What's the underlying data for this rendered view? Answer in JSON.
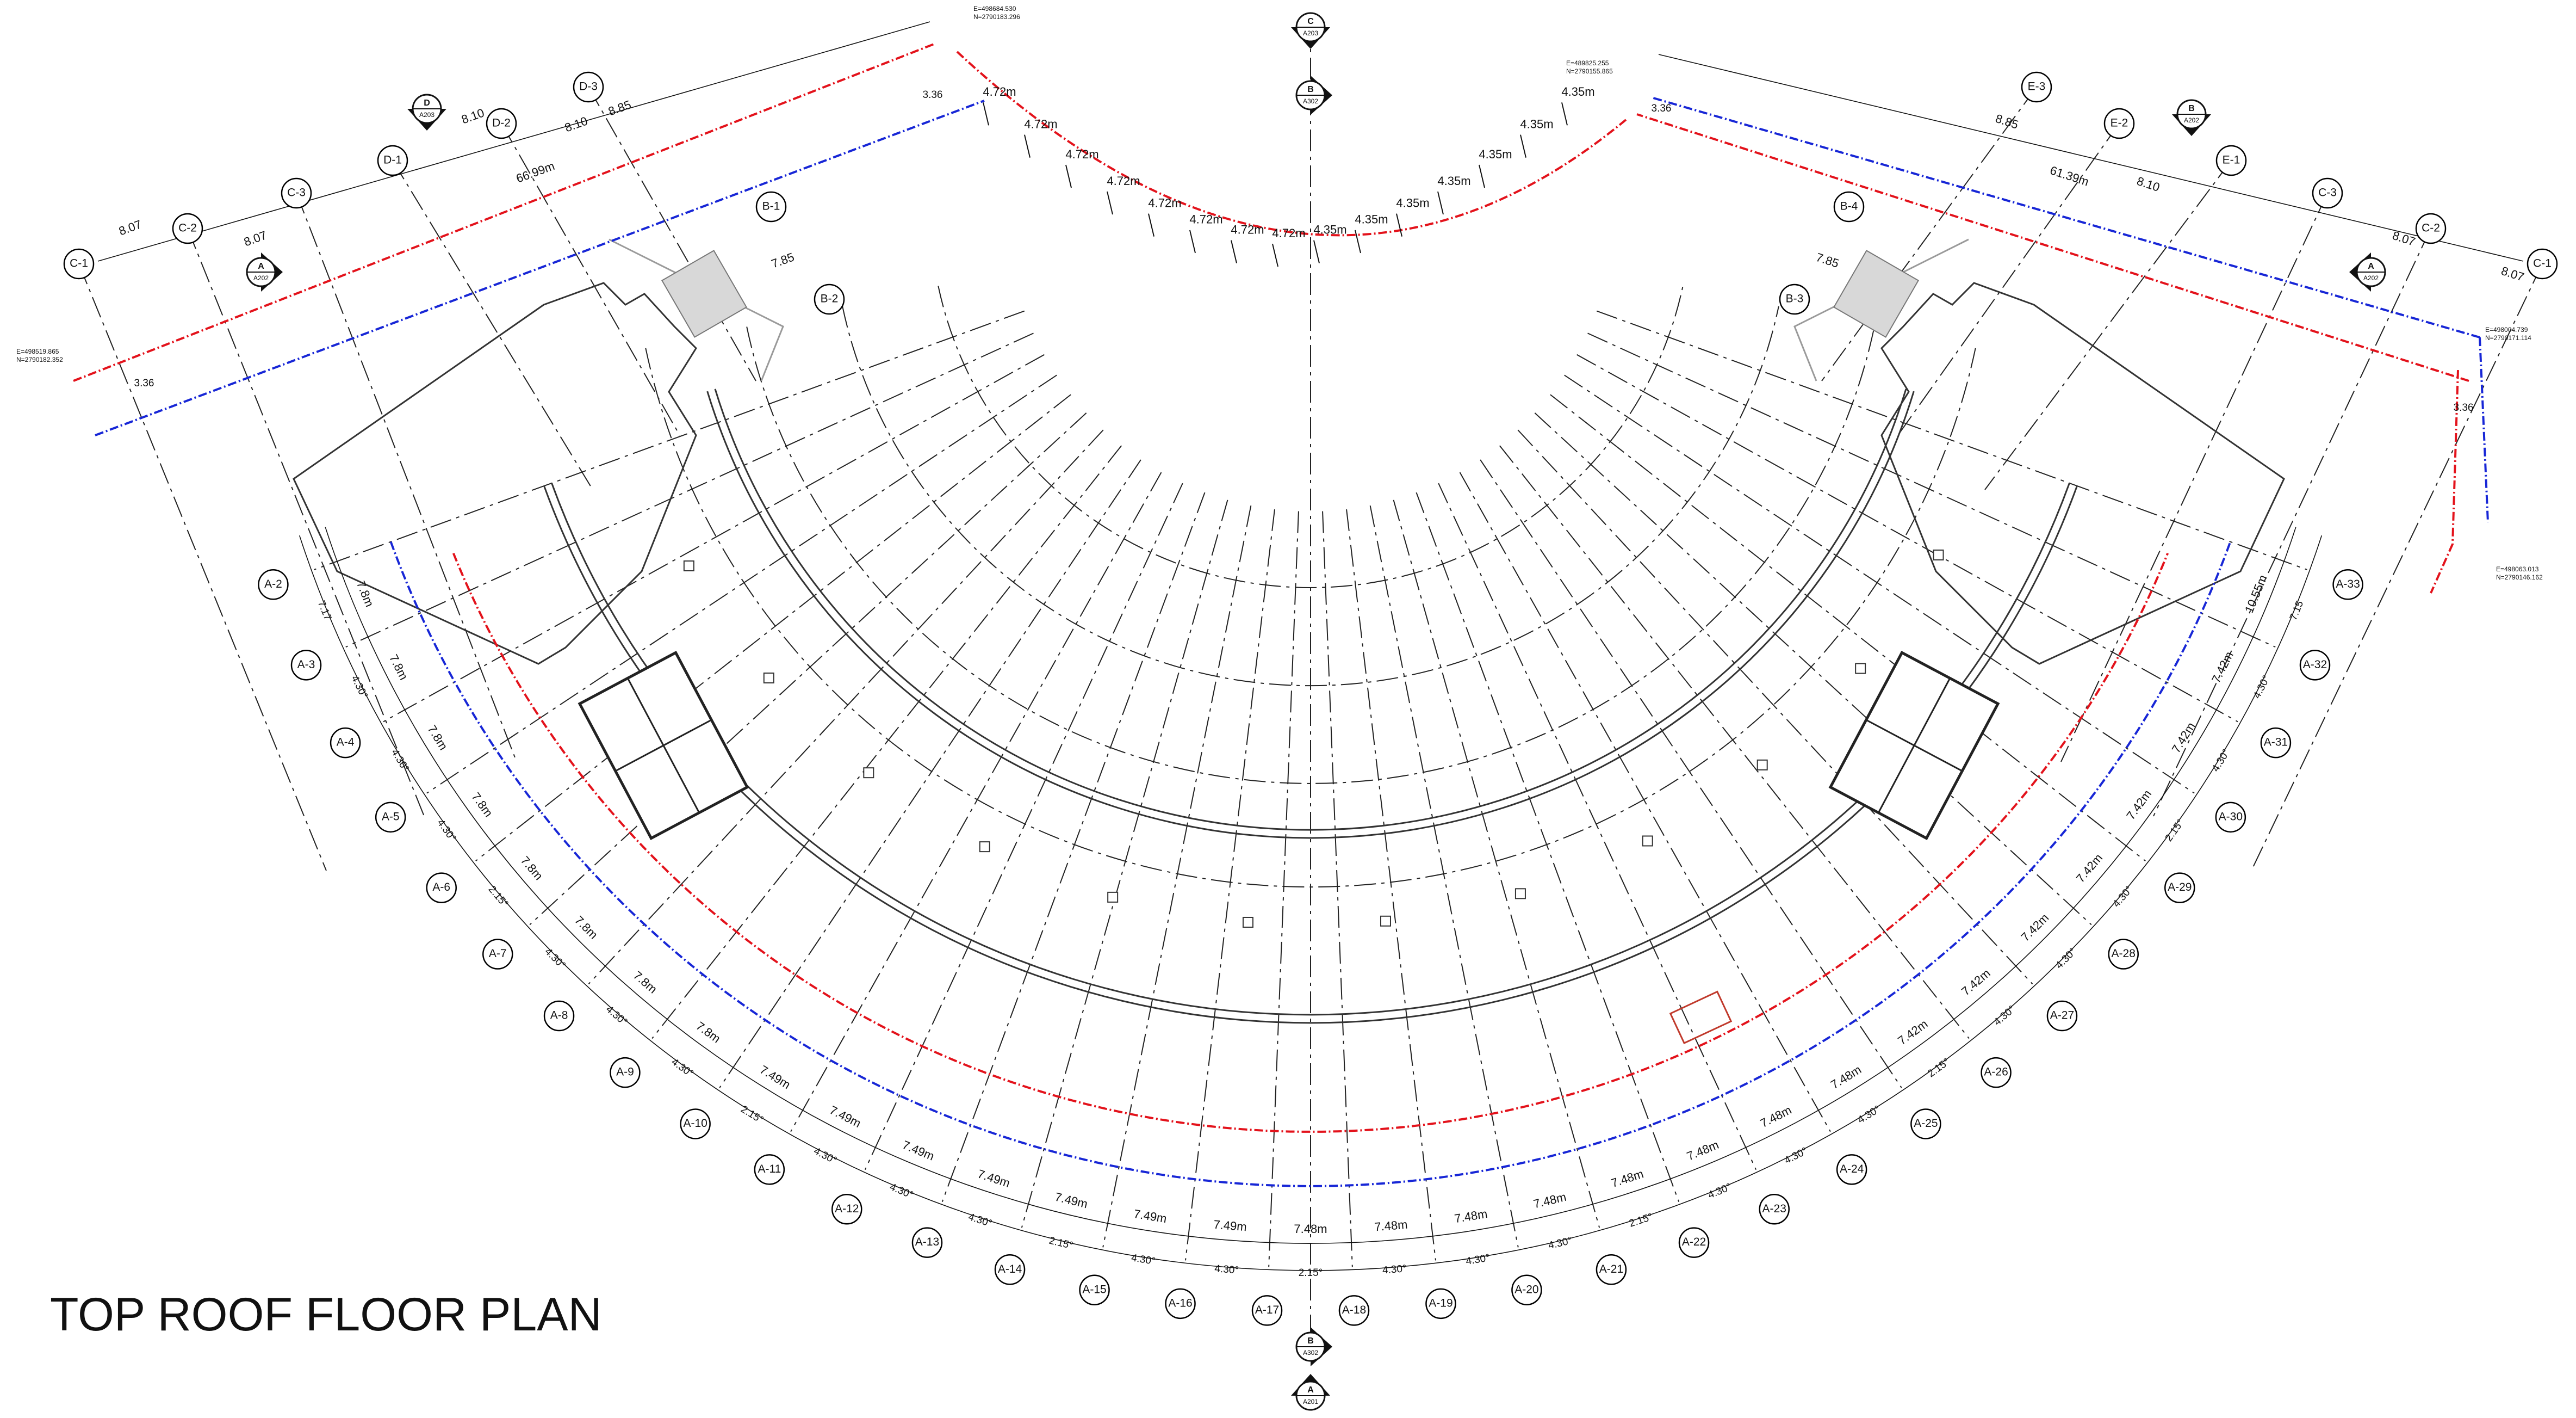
{
  "drawing_title": "TOP ROOF FLOOR PLAN",
  "colors": {
    "boundary_red": "#e3121b",
    "boundary_blue": "#1726d6",
    "stair_red": "#c0392b",
    "linework": "#222222"
  },
  "radial_grids": [
    "A-2",
    "A-3",
    "A-4",
    "A-5",
    "A-6",
    "A-7",
    "A-8",
    "A-9",
    "A-10",
    "A-11",
    "A-12",
    "A-13",
    "A-14",
    "A-15",
    "A-16",
    "A-17",
    "A-18",
    "A-19",
    "A-20",
    "A-21",
    "A-22",
    "A-23",
    "A-24",
    "A-25",
    "A-26",
    "A-27",
    "A-28",
    "A-29",
    "A-30",
    "A-31",
    "A-32",
    "A-33"
  ],
  "outer_angles": [
    "7.17",
    "4.30°",
    "4.30°",
    "4.30°",
    "2.15°",
    "4.30°",
    "4.30°",
    "4.30°",
    "2.15°",
    "4.30°",
    "4.30°",
    "4.30°",
    "2.15°",
    "4.30°",
    "4.30°",
    "2.15°",
    "4.30°",
    "4.30°",
    "4.30°",
    "2.15°",
    "4.30°",
    "4.30°",
    "4.30°",
    "2.15°",
    "4.30°",
    "4.30°",
    "4.30°",
    "2.15°",
    "4.30°",
    "4.30°",
    "7.15"
  ],
  "outer_spacings": [
    "7.8m",
    "7.8m",
    "7.8m",
    "7.8m",
    "7.8m",
    "7.8m",
    "7.8m",
    "7.8m",
    "7.49m",
    "7.49m",
    "7.49m",
    "7.49m",
    "7.49m",
    "7.49m",
    "7.49m",
    "7.48m",
    "7.48m",
    "7.48m",
    "7.48m",
    "7.48m",
    "7.48m",
    "7.48m",
    "7.48m",
    "7.42m",
    "7.42m",
    "7.42m",
    "7.42m",
    "7.42m",
    "7.42m",
    "7.42m",
    "10.55m"
  ],
  "inner_arc_spacings": [
    "4.72m",
    "4.72m",
    "4.72m",
    "4.72m",
    "4.72m",
    "4.72m",
    "4.72m",
    "4.72m",
    "4.35m",
    "4.35m",
    "4.35m",
    "4.35m",
    "4.35m",
    "4.35m",
    "4.35m"
  ],
  "left_wing": {
    "c_grids": [
      "C-1",
      "C-2",
      "C-3"
    ],
    "d_grids": [
      "D-1",
      "D-2",
      "D-3"
    ],
    "b_grids": [
      "B-1",
      "B-2"
    ],
    "c_spacings": [
      "8.07",
      "8.07"
    ],
    "d_spacings": [
      "8.10",
      "8.85"
    ],
    "overall": "66.99m",
    "b_spacing": "7.85"
  },
  "right_wing": {
    "c_grids": [
      "C-3",
      "C-2",
      "C-1"
    ],
    "e_grids": [
      "E-3",
      "E-2",
      "E-1"
    ],
    "b_grids": [
      "B-4",
      "B-3"
    ],
    "c_spacings": [
      "8.07",
      "8.07"
    ],
    "e_spacings": [
      "8.85",
      "8.10"
    ],
    "overall": "61.39m",
    "b_spacing": "7.85"
  },
  "section_markers": [
    {
      "letter": "C",
      "sheet": "A203"
    },
    {
      "letter": "B",
      "sheet": "A302"
    },
    {
      "letter": "D",
      "sheet": "A203"
    },
    {
      "letter": "A",
      "sheet": "A202"
    },
    {
      "letter": "B",
      "sheet": "A202"
    },
    {
      "letter": "A",
      "sheet": "A202"
    },
    {
      "letter": "B",
      "sheet": "A302"
    },
    {
      "letter": "A",
      "sheet": "A201"
    }
  ],
  "coordinates": [
    {
      "e": "E=498684.530",
      "n": "N=2790183.296"
    },
    {
      "e": "E=489825.255",
      "n": "N=2790155.865"
    },
    {
      "e": "E=498519.865",
      "n": "N=2790182.352"
    },
    {
      "e": "E=498004.739",
      "n": "N=2790171.114"
    },
    {
      "e": "E=498063.013",
      "n": "N=2790146.162"
    }
  ],
  "small_dims": [
    "3.36",
    "3.36",
    "3.36",
    "3.36"
  ]
}
